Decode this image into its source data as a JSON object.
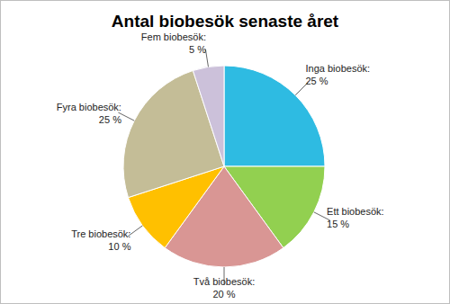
{
  "chart_data": {
    "type": "pie",
    "title": "Antal biobesök senaste året",
    "categories": [
      "Inga biobesök:",
      "Ett biobesök:",
      "Två biobesök:",
      "Tre biobesök:",
      "Fyra biobesök:",
      "Fem biobesök:"
    ],
    "values": [
      25,
      15,
      20,
      10,
      25,
      5
    ],
    "value_labels": [
      "25 %",
      "15 %",
      "20 %",
      "10 %",
      "25 %",
      "5 %"
    ],
    "colors": [
      "#2ebbe2",
      "#92d050",
      "#d99694",
      "#ffc000",
      "#c4bd97",
      "#ccc1da"
    ],
    "data_labels": true
  }
}
